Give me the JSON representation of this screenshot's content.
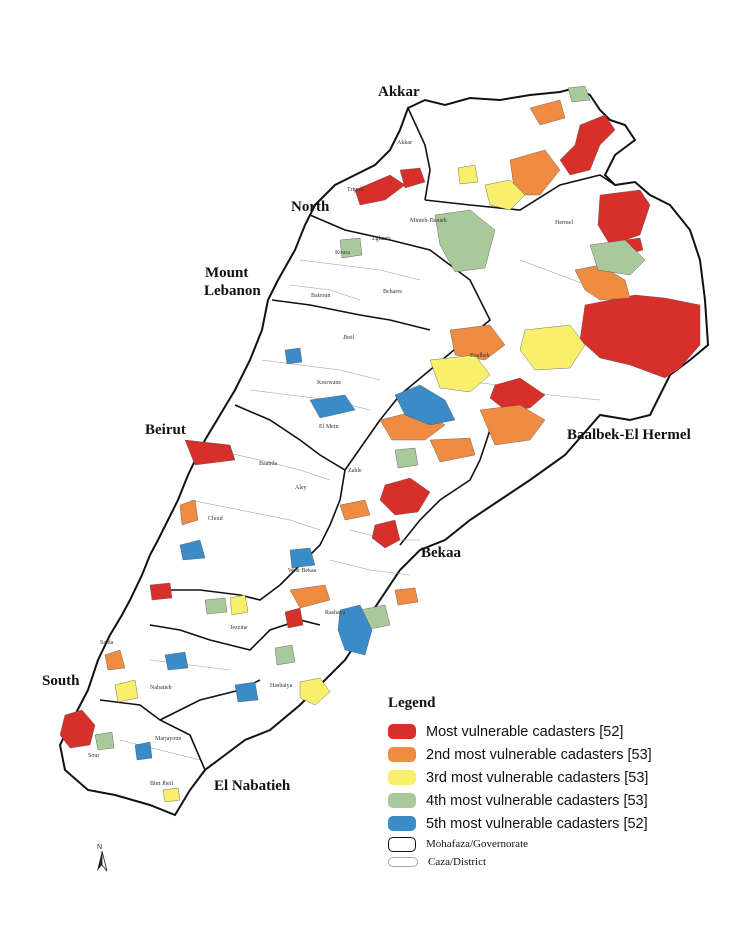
{
  "governorates": {
    "akkar": "Akkar",
    "north": "North",
    "mount_lebanon": [
      "Mount",
      "Lebanon"
    ],
    "beirut": "Beirut",
    "baalbek": "Baalbek-El Hermel",
    "bekaa": "Bekaa",
    "south": "South",
    "nabatieh": "El Nabatieh"
  },
  "districts": [
    "Akkar",
    "Minieh-Danieh",
    "Zgharta",
    "Bcharre",
    "Koura",
    "Batroun",
    "Jbeil",
    "Kesrwane",
    "El Metn",
    "Baabda",
    "Aley",
    "Chouf",
    "Hermel",
    "Baalbek",
    "Zahle",
    "West Bekaa",
    "Rashaya",
    "Hasbaiya",
    "Jezzine",
    "Saida",
    "Nabatieh",
    "Marjayoun",
    "Sour",
    "Bint Jbeil",
    "Tripoli"
  ],
  "legend": {
    "title": "Legend",
    "items": [
      {
        "label": "Most vulnerable cadasters [52]",
        "color": "#d7302a"
      },
      {
        "label": "2nd most vulnerable cadasters [53]",
        "color": "#ef8c42"
      },
      {
        "label": "3rd most vulnerable cadasters [53]",
        "color": "#f8f06a"
      },
      {
        "label": "4th most vulnerable cadasters [53]",
        "color": "#a9c99a"
      },
      {
        "label": "5th most vulnerable cadasters [52]",
        "color": "#3b8bc9"
      }
    ],
    "boundaries": [
      {
        "label": "Mohafaza/Governorate"
      },
      {
        "label": "Caza/District"
      }
    ]
  },
  "north_arrow": "N"
}
